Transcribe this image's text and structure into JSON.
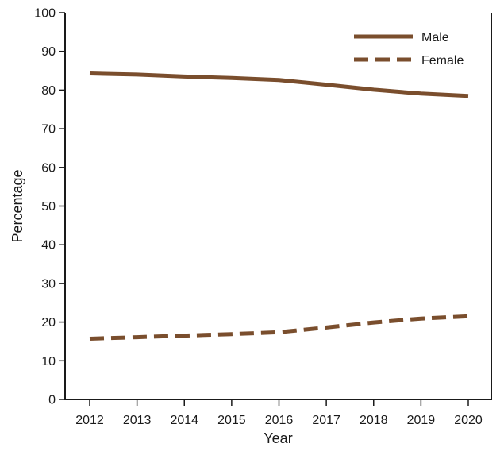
{
  "chart_data": {
    "type": "line",
    "title": "",
    "xlabel": "Year",
    "ylabel": "Percentage",
    "x": [
      2012,
      2013,
      2014,
      2015,
      2016,
      2017,
      2018,
      2019,
      2020
    ],
    "ylim": [
      0,
      100
    ],
    "yticks": [
      0,
      10,
      20,
      30,
      40,
      50,
      60,
      70,
      80,
      90,
      100
    ],
    "grid": false,
    "legend_position": "top-right",
    "series": [
      {
        "name": "Male",
        "style": "solid",
        "color": "#7a4e2d",
        "values": [
          84.3,
          84.0,
          83.5,
          83.1,
          82.6,
          81.4,
          80.1,
          79.1,
          78.5
        ]
      },
      {
        "name": "Female",
        "style": "dashed",
        "color": "#7a4e2d",
        "values": [
          15.7,
          16.1,
          16.5,
          16.9,
          17.4,
          18.6,
          19.9,
          20.9,
          21.5
        ]
      }
    ]
  }
}
